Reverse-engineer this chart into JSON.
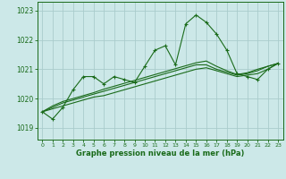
{
  "bg_color": "#cce8e8",
  "grid_color": "#aacccc",
  "line_color": "#1a6b1a",
  "x_label": "Graphe pression niveau de la mer (hPa)",
  "ylim": [
    1018.6,
    1023.3
  ],
  "xlim": [
    -0.5,
    23.5
  ],
  "yticks": [
    1019,
    1020,
    1021,
    1022,
    1023
  ],
  "xticks": [
    0,
    1,
    2,
    3,
    4,
    5,
    6,
    7,
    8,
    9,
    10,
    11,
    12,
    13,
    14,
    15,
    16,
    17,
    18,
    19,
    20,
    21,
    22,
    23
  ],
  "main_series": [
    1019.55,
    1019.3,
    1019.7,
    1020.3,
    1020.75,
    1020.75,
    1020.5,
    1020.75,
    1020.65,
    1020.55,
    1021.1,
    1021.65,
    1021.8,
    1021.15,
    1022.55,
    1022.85,
    1022.6,
    1022.2,
    1021.65,
    1020.85,
    1020.75,
    1020.65,
    1021.0,
    1021.2
  ],
  "line1": [
    1019.55,
    1019.65,
    1019.75,
    1019.85,
    1019.95,
    1020.05,
    1020.1,
    1020.2,
    1020.3,
    1020.4,
    1020.5,
    1020.6,
    1020.7,
    1020.8,
    1020.9,
    1021.0,
    1021.05,
    1020.95,
    1020.85,
    1020.75,
    1020.8,
    1020.85,
    1021.0,
    1021.2
  ],
  "line2": [
    1019.55,
    1019.7,
    1019.85,
    1019.95,
    1020.05,
    1020.15,
    1020.25,
    1020.35,
    1020.45,
    1020.55,
    1020.65,
    1020.75,
    1020.85,
    1020.95,
    1021.05,
    1021.15,
    1021.15,
    1021.0,
    1020.9,
    1020.8,
    1020.85,
    1020.95,
    1021.1,
    1021.2
  ],
  "line3": [
    1019.55,
    1019.75,
    1019.9,
    1020.0,
    1020.1,
    1020.2,
    1020.32,
    1020.42,
    1020.52,
    1020.62,
    1020.72,
    1020.82,
    1020.92,
    1021.02,
    1021.12,
    1021.22,
    1021.28,
    1021.1,
    1020.95,
    1020.82,
    1020.88,
    1021.0,
    1021.1,
    1021.2
  ]
}
